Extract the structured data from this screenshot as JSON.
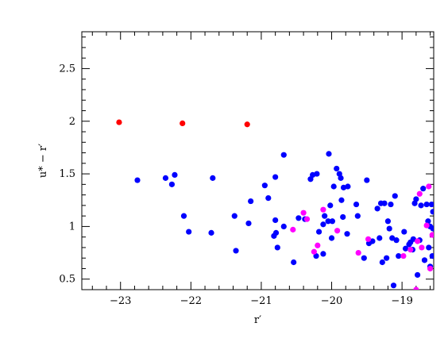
{
  "chart_data": {
    "type": "scatter",
    "xlabel": "r′",
    "ylabel": "u* − r′",
    "xlim": [
      -23.55,
      -18.55
    ],
    "ylim": [
      0.4,
      2.85
    ],
    "x_reversed": false,
    "xticks": [
      -23,
      -22,
      -21,
      -20,
      -19
    ],
    "xtick_labels": [
      "−23",
      "−22",
      "−21",
      "−20",
      "−19"
    ],
    "yticks": [
      0.5,
      1,
      1.5,
      2,
      2.5
    ],
    "ytick_labels": [
      "0.5",
      "1",
      "1.5",
      "2",
      "2.5"
    ],
    "grid": false,
    "legend": "none",
    "colors": {
      "red": "#ff0000",
      "blue": "#0000ff",
      "magenta": "#ff00ff"
    },
    "series": [
      {
        "color": "#ff0000",
        "points": [
          [
            -23.02,
            1.99
          ],
          [
            -22.12,
            1.98
          ],
          [
            -21.2,
            1.97
          ]
        ]
      },
      {
        "color": "#0000ff",
        "points": [
          [
            -22.76,
            1.44
          ],
          [
            -22.36,
            1.46
          ],
          [
            -22.27,
            1.4
          ],
          [
            -22.23,
            1.49
          ],
          [
            -22.1,
            1.1
          ],
          [
            -22.03,
            0.95
          ],
          [
            -21.71,
            0.94
          ],
          [
            -21.69,
            1.46
          ],
          [
            -21.38,
            1.1
          ],
          [
            -21.36,
            0.77
          ],
          [
            -21.18,
            1.03
          ],
          [
            -21.15,
            1.24
          ],
          [
            -20.95,
            1.39
          ],
          [
            -20.9,
            1.27
          ],
          [
            -20.82,
            0.91
          ],
          [
            -20.8,
            1.06
          ],
          [
            -20.79,
            0.94
          ],
          [
            -20.8,
            1.47
          ],
          [
            -20.77,
            0.8
          ],
          [
            -20.68,
            1.68
          ],
          [
            -20.68,
            1.0
          ],
          [
            -20.54,
            0.66
          ],
          [
            -20.47,
            1.08
          ],
          [
            -20.38,
            1.07
          ],
          [
            -20.3,
            1.45
          ],
          [
            -20.27,
            1.49
          ],
          [
            -20.21,
            1.5
          ],
          [
            -20.22,
            0.72
          ],
          [
            -20.18,
            0.95
          ],
          [
            -20.12,
            0.74
          ],
          [
            -20.12,
            1.02
          ],
          [
            -20.1,
            1.1
          ],
          [
            -20.05,
            1.05
          ],
          [
            -20.04,
            1.69
          ],
          [
            -20.02,
            1.2
          ],
          [
            -20.0,
            0.89
          ],
          [
            -19.99,
            1.05
          ],
          [
            -19.97,
            1.38
          ],
          [
            -19.93,
            1.55
          ],
          [
            -19.89,
            1.5
          ],
          [
            -19.87,
            1.46
          ],
          [
            -19.86,
            1.25
          ],
          [
            -19.84,
            1.09
          ],
          [
            -19.83,
            1.37
          ],
          [
            -19.77,
            1.38
          ],
          [
            -19.78,
            0.93
          ],
          [
            -19.65,
            1.21
          ],
          [
            -19.63,
            1.1
          ],
          [
            -19.54,
            0.7
          ],
          [
            -19.5,
            1.44
          ],
          [
            -19.47,
            0.84
          ],
          [
            -19.42,
            0.86
          ],
          [
            -19.35,
            1.17
          ],
          [
            -19.32,
            0.89
          ],
          [
            -19.3,
            1.22
          ],
          [
            -19.28,
            0.66
          ],
          [
            -19.25,
            1.22
          ],
          [
            -19.22,
            0.7
          ],
          [
            -19.2,
            1.05
          ],
          [
            -19.18,
            0.98
          ],
          [
            -19.16,
            1.21
          ],
          [
            -19.14,
            0.89
          ],
          [
            -19.12,
            0.44
          ],
          [
            -19.1,
            1.29
          ],
          [
            -19.08,
            0.87
          ],
          [
            -19.05,
            0.72
          ],
          [
            -18.97,
            0.95
          ],
          [
            -18.95,
            0.79
          ],
          [
            -18.9,
            0.83
          ],
          [
            -18.88,
            0.85
          ],
          [
            -18.85,
            0.78
          ],
          [
            -18.84,
            0.88
          ],
          [
            -18.82,
            1.22
          ],
          [
            -18.8,
            1.26
          ],
          [
            -18.78,
            0.54
          ],
          [
            -18.75,
            0.87
          ],
          [
            -18.73,
            1.2
          ],
          [
            -18.7,
            1.36
          ],
          [
            -18.68,
            0.68
          ],
          [
            -18.65,
            1.21
          ],
          [
            -18.63,
            1.05
          ],
          [
            -18.62,
            0.8
          ],
          [
            -18.6,
            0.62
          ],
          [
            -18.6,
            1.0
          ],
          [
            -18.58,
            1.21
          ],
          [
            -18.57,
            0.72
          ],
          [
            -18.56,
            1.14
          ],
          [
            -18.56,
            0.98
          ]
        ]
      },
      {
        "color": "#ff00ff",
        "points": [
          [
            -20.55,
            0.97
          ],
          [
            -20.4,
            1.13
          ],
          [
            -20.35,
            1.07
          ],
          [
            -20.25,
            0.76
          ],
          [
            -20.2,
            0.82
          ],
          [
            -20.12,
            1.16
          ],
          [
            -19.92,
            0.96
          ],
          [
            -19.62,
            0.75
          ],
          [
            -19.48,
            0.88
          ],
          [
            -18.98,
            0.72
          ],
          [
            -18.88,
            0.78
          ],
          [
            -18.78,
            0.86
          ],
          [
            -18.75,
            1.31
          ],
          [
            -18.72,
            0.8
          ],
          [
            -18.65,
            1.01
          ],
          [
            -18.62,
            1.38
          ],
          [
            -18.6,
            0.6
          ],
          [
            -18.57,
            0.92
          ],
          [
            -18.8,
            0.4
          ]
        ]
      }
    ]
  }
}
